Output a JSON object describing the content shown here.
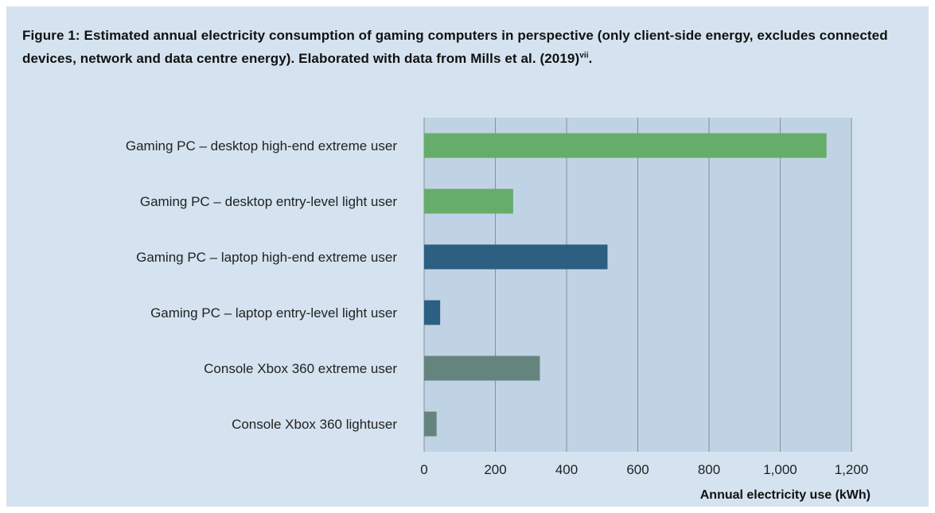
{
  "figure": {
    "title": "Figure 1: Estimated annual electricity consumption of gaming computers in perspective (only client-side energy, excludes connected devices, network and data centre energy). Elaborated with data from Mills et al. (2019)",
    "title_superscript": "vii",
    "title_suffix": "."
  },
  "colors": {
    "background": "#d4e3ef",
    "plot_area": "#bfd3e5",
    "gridline": "#8a8f94",
    "desktop": "#66ac6a",
    "laptop": "#2c5f82",
    "console": "#66847e"
  },
  "chart_data": {
    "type": "bar",
    "orientation": "horizontal",
    "categories": [
      "Gaming PC – desktop high-end extreme user",
      "Gaming PC – desktop entry-level light user",
      "Gaming PC – laptop high-end extreme user",
      "Gaming PC – laptop entry-level light user",
      "Console Xbox 360 extreme user",
      "Console Xbox 360 lightuser"
    ],
    "values": [
      1130,
      250,
      515,
      45,
      325,
      35
    ],
    "bar_groups": [
      "desktop",
      "desktop",
      "laptop",
      "laptop",
      "console",
      "console"
    ],
    "xlabel": "Annual electricity use (kWh)",
    "xlim": [
      0,
      1200
    ],
    "x_ticks": [
      0,
      200,
      400,
      600,
      800,
      1000,
      1200
    ],
    "x_tick_labels": [
      "0",
      "200",
      "400",
      "600",
      "800",
      "1,000",
      "1,200"
    ],
    "grid": "vertical",
    "legend": "none"
  }
}
